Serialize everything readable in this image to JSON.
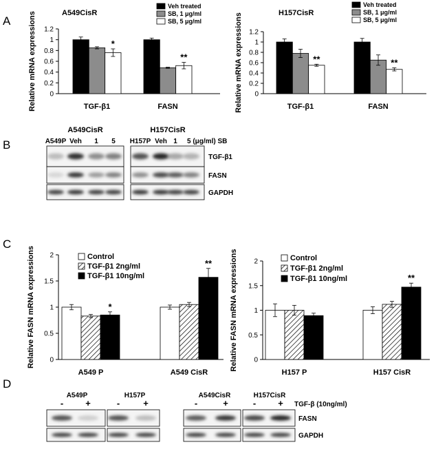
{
  "panels": {
    "a": "A",
    "b": "B",
    "c": "C",
    "d": "D"
  },
  "chart_data": [
    {
      "id": "A-left",
      "type": "bar",
      "title": "A549CisR",
      "ylabel": "Relative mRNA expressions",
      "ylim": [
        0,
        1.2
      ],
      "yticks": [
        0,
        0.2,
        0.4,
        0.6,
        0.8,
        1,
        1.2
      ],
      "grid": false,
      "categories": [
        "TGF-β1",
        "FASN"
      ],
      "series": [
        {
          "name": "Veh treated",
          "color": "#000000",
          "pattern": "solid",
          "values": [
            1.0,
            1.0
          ],
          "errors": [
            0.05,
            0.03
          ]
        },
        {
          "name": "SB, 1 μg/ml",
          "color": "#8c8c8c",
          "pattern": "solid",
          "values": [
            0.85,
            0.48
          ],
          "errors": [
            0.02,
            0.01
          ]
        },
        {
          "name": "SB, 5 μg/ml",
          "color": "#ffffff",
          "pattern": "solid",
          "values": [
            0.76,
            0.52
          ],
          "errors": [
            0.07,
            0.06
          ]
        }
      ],
      "annotations": [
        {
          "category": 0,
          "series": 2,
          "text": "*"
        },
        {
          "category": 1,
          "series": 2,
          "text": "**"
        }
      ],
      "legend_position": "top-right"
    },
    {
      "id": "A-right",
      "type": "bar",
      "title": "H157CisR",
      "ylabel": "Relative mRNA expressions",
      "ylim": [
        0,
        1.2
      ],
      "yticks": [
        0,
        0.2,
        0.4,
        0.6,
        0.8,
        1,
        1.2
      ],
      "grid": false,
      "categories": [
        "TGF-β1",
        "FASN"
      ],
      "series": [
        {
          "name": "Veh treated",
          "color": "#000000",
          "pattern": "solid",
          "values": [
            1.0,
            1.0
          ],
          "errors": [
            0.06,
            0.07
          ]
        },
        {
          "name": "SB, 1 μg/ml",
          "color": "#8c8c8c",
          "pattern": "solid",
          "values": [
            0.78,
            0.65
          ],
          "errors": [
            0.08,
            0.1
          ]
        },
        {
          "name": "SB, 5 μg/ml",
          "color": "#ffffff",
          "pattern": "solid",
          "values": [
            0.55,
            0.47
          ],
          "errors": [
            0.02,
            0.03
          ]
        }
      ],
      "annotations": [
        {
          "category": 0,
          "series": 2,
          "text": "**"
        },
        {
          "category": 1,
          "series": 2,
          "text": "**"
        }
      ],
      "legend_position": "top-right"
    },
    {
      "id": "C-left",
      "type": "bar",
      "title": "",
      "ylabel": "Relative FASN mRNA expressions",
      "ylim": [
        0,
        2
      ],
      "yticks": [
        0,
        0.5,
        1,
        1.5,
        2
      ],
      "grid": false,
      "categories": [
        "A549 P",
        "A549 CisR"
      ],
      "series": [
        {
          "name": "Control",
          "color": "#ffffff",
          "pattern": "solid",
          "values": [
            1.0,
            1.0
          ],
          "errors": [
            0.05,
            0.04
          ]
        },
        {
          "name": "TGF-β1 2ng/ml",
          "color": "#ffffff",
          "pattern": "hatch",
          "values": [
            0.83,
            1.05
          ],
          "errors": [
            0.03,
            0.04
          ]
        },
        {
          "name": "TGF-β1 10ng/ml",
          "color": "#000000",
          "pattern": "solid",
          "values": [
            0.85,
            1.57
          ],
          "errors": [
            0.06,
            0.17
          ]
        }
      ],
      "annotations": [
        {
          "category": 0,
          "series": 2,
          "text": "*"
        },
        {
          "category": 1,
          "series": 2,
          "text": "**"
        }
      ],
      "legend_position": "top-left"
    },
    {
      "id": "C-right",
      "type": "bar",
      "title": "",
      "ylabel": "Relative FASN mRNA expressions",
      "ylim": [
        0,
        2
      ],
      "yticks": [
        0,
        0.5,
        1,
        1.5,
        2
      ],
      "grid": false,
      "categories": [
        "H157 P",
        "H157 CisR"
      ],
      "series": [
        {
          "name": "Control",
          "color": "#ffffff",
          "pattern": "solid",
          "values": [
            1.0,
            1.0
          ],
          "errors": [
            0.13,
            0.07
          ]
        },
        {
          "name": "TGF-β1 2ng/ml",
          "color": "#ffffff",
          "pattern": "hatch",
          "values": [
            1.0,
            1.12
          ],
          "errors": [
            0.1,
            0.06
          ]
        },
        {
          "name": "TGF-β1 10ng/ml",
          "color": "#000000",
          "pattern": "solid",
          "values": [
            0.89,
            1.47
          ],
          "errors": [
            0.05,
            0.08
          ]
        }
      ],
      "annotations": [
        {
          "category": 1,
          "series": 2,
          "text": "**"
        }
      ],
      "legend_position": "top-left"
    }
  ],
  "blot_b": {
    "group_titles": [
      "A549CisR",
      "H157CisR"
    ],
    "lane_labels_left": [
      "A549P",
      "Veh",
      "1",
      "5"
    ],
    "lane_labels_right": [
      "H157P",
      "Veh",
      "1",
      "5 (μg/ml) SB"
    ],
    "rows": [
      "TGF-β1",
      "FASN",
      "GAPDH"
    ],
    "intensities": {
      "TGF-β1": [
        [
          0.3,
          0.95,
          0.5,
          0.55
        ],
        [
          0.75,
          1.0,
          0.4,
          0.35
        ]
      ],
      "FASN": [
        [
          0.15,
          0.9,
          0.45,
          0.55
        ],
        [
          0.5,
          0.8,
          0.7,
          0.55
        ]
      ],
      "GAPDH": [
        [
          0.85,
          0.9,
          0.85,
          0.85
        ],
        [
          0.9,
          0.9,
          0.85,
          0.85
        ]
      ]
    }
  },
  "blot_d": {
    "group_titles": [
      "A549P",
      "H157P",
      "A549CisR",
      "H157CisR"
    ],
    "signs": [
      "-",
      "+",
      "-",
      "+",
      "-",
      "+",
      "-",
      "+"
    ],
    "treatment_label": "TGF-β (10ng/ml)",
    "rows": [
      "FASN",
      "GAPDH"
    ],
    "intensities": {
      "FASN": [
        [
          0.75,
          0.2
        ],
        [
          0.75,
          0.3
        ],
        [
          0.7,
          0.9
        ],
        [
          0.8,
          1.0
        ]
      ],
      "GAPDH": [
        [
          0.85,
          0.85
        ],
        [
          0.85,
          0.85
        ],
        [
          0.85,
          0.85
        ],
        [
          0.85,
          0.85
        ]
      ]
    }
  }
}
